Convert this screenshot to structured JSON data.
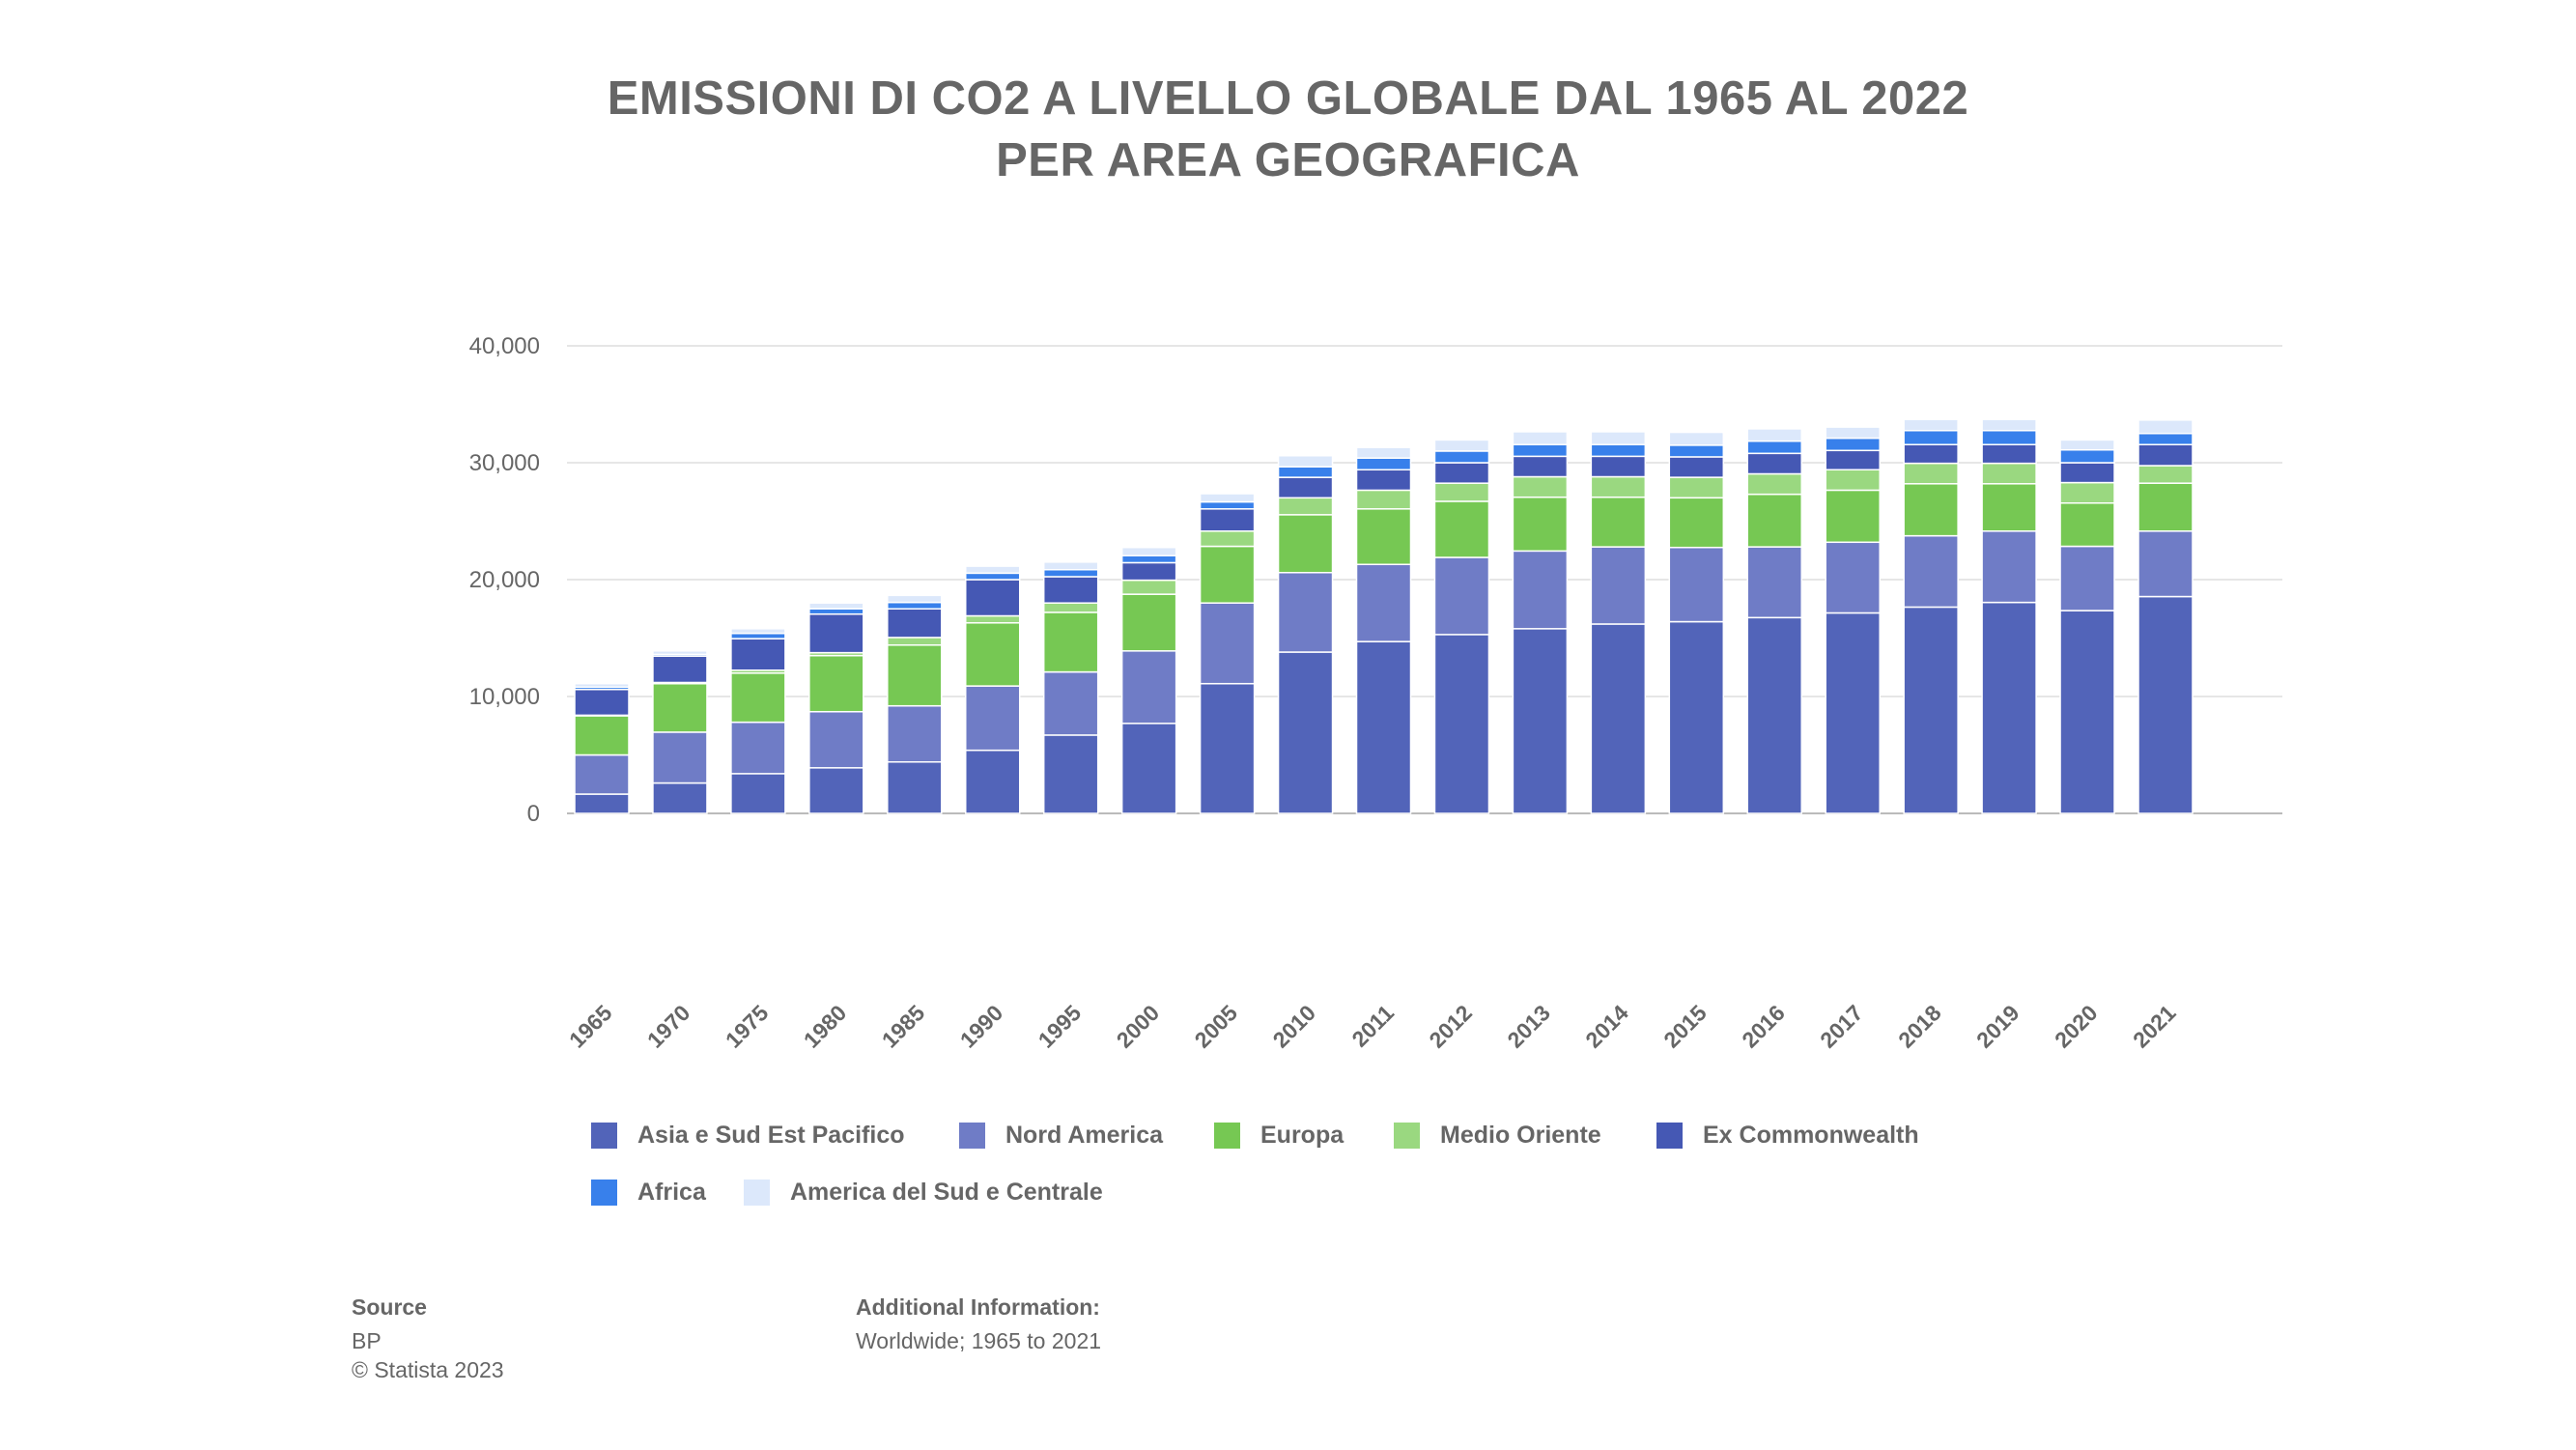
{
  "title_line1": "EMISSIONI DI CO2 A LIVELLO GLOBALE DAL 1965 AL 2022",
  "title_line2": "PER AREA GEOGRAFICA",
  "chart_data": {
    "type": "bar",
    "stacked": true,
    "title": "EMISSIONI DI CO2 A LIVELLO GLOBALE DAL 1965 AL 2022 PER AREA GEOGRAFICA",
    "xlabel": "",
    "ylabel": "",
    "ylim": [
      0,
      40000
    ],
    "yticks": [
      0,
      10000,
      20000,
      30000,
      40000
    ],
    "ytick_labels": [
      "0",
      "10,000",
      "20,000",
      "30,000",
      "40,000"
    ],
    "grid": true,
    "legend_position": "bottom",
    "categories": [
      "1965",
      "1970",
      "1975",
      "1980",
      "1985",
      "1990",
      "1995",
      "2000",
      "2005",
      "2010",
      "2011",
      "2012",
      "2013",
      "2014",
      "2015",
      "2016",
      "2017",
      "2018",
      "2019",
      "2020",
      "2021"
    ],
    "series": [
      {
        "name": "Asia e Sud Est Pacifico",
        "color": "#5264b9",
        "values": [
          1650,
          2600,
          3400,
          3900,
          4400,
          5400,
          6700,
          7700,
          11100,
          13800,
          14700,
          15300,
          15800,
          16200,
          16400,
          16750,
          17150,
          17650,
          18050,
          17350,
          18550
        ]
      },
      {
        "name": "Nord America",
        "color": "#6f7cc6",
        "values": [
          3350,
          4350,
          4400,
          4800,
          4800,
          5500,
          5400,
          6200,
          6900,
          6800,
          6600,
          6600,
          6650,
          6600,
          6350,
          6050,
          6050,
          6100,
          6100,
          5500,
          5600
        ]
      },
      {
        "name": "Europa",
        "color": "#76c853",
        "values": [
          3350,
          4150,
          4200,
          4800,
          5200,
          5400,
          5100,
          4850,
          4850,
          4950,
          4750,
          4800,
          4600,
          4250,
          4250,
          4500,
          4450,
          4450,
          4050,
          3700,
          4100
        ]
      },
      {
        "name": "Medio Oriente",
        "color": "#9ad880",
        "values": [
          50,
          100,
          250,
          250,
          650,
          600,
          800,
          1200,
          1300,
          1450,
          1600,
          1550,
          1750,
          1750,
          1750,
          1750,
          1750,
          1750,
          1750,
          1750,
          1500
        ]
      },
      {
        "name": "Ex Commonwealth",
        "color": "#4558b4",
        "values": [
          2200,
          2250,
          2700,
          3300,
          2450,
          3100,
          2250,
          1500,
          1900,
          1750,
          1750,
          1750,
          1750,
          1750,
          1750,
          1750,
          1650,
          1600,
          1600,
          1700,
          1800
        ]
      },
      {
        "name": "Africa",
        "color": "#3880eb",
        "values": [
          200,
          150,
          450,
          450,
          550,
          550,
          600,
          600,
          600,
          900,
          1000,
          1000,
          1000,
          1000,
          1000,
          1050,
          1050,
          1200,
          1200,
          1100,
          950
        ]
      },
      {
        "name": "America del Sud e Centrale",
        "color": "#dce8fb",
        "values": [
          300,
          300,
          400,
          500,
          600,
          600,
          650,
          700,
          700,
          950,
          900,
          950,
          1100,
          1100,
          1100,
          1050,
          950,
          950,
          950,
          850,
          1150
        ]
      }
    ]
  },
  "footer": {
    "source_label": "Source",
    "source_value": "BP",
    "copyright": "© Statista 2023",
    "additional_label": "Additional Information:",
    "additional_value": "Worldwide; 1965 to 2021"
  }
}
